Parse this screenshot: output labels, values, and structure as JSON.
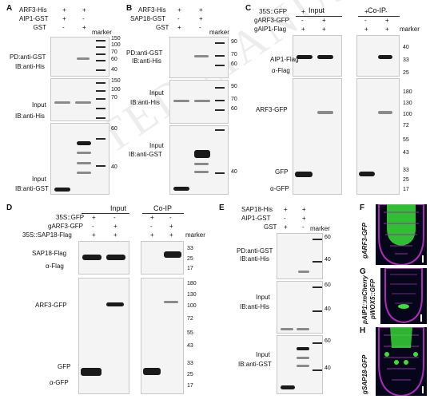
{
  "watermark": "ACCEPTED MANUSCRIPT",
  "watermark_visible": "TED MANUSCRIPT",
  "panels": {
    "A": {
      "letter": "A",
      "rows": [
        "ARF3-His",
        "AIP1-GST",
        "GST"
      ],
      "signs": [
        [
          "+",
          "+"
        ],
        [
          "+",
          "-"
        ],
        [
          "-",
          "+"
        ]
      ],
      "marker": "marker",
      "labels": [
        "PD:anti-GST",
        "IB:anti-His",
        "Input",
        "IB:anti-His",
        "Input",
        "IB:anti-GST"
      ],
      "ladder": [
        "150",
        "100",
        "70",
        "60",
        "40",
        "150",
        "100",
        "70",
        "60",
        "40"
      ]
    },
    "B": {
      "letter": "B",
      "rows": [
        "ARF3-His",
        "SAP18-GST",
        "GST"
      ],
      "signs": [
        [
          "+",
          "+"
        ],
        [
          "-",
          "+"
        ],
        [
          "+",
          "-"
        ]
      ],
      "marker": "marker",
      "labels": [
        "PD:anti-GST",
        "IB:anti-His",
        "Input",
        "IB:anti-His",
        "Input",
        "IB:anti-GST"
      ],
      "ladder": [
        "90",
        "70",
        "60",
        "90",
        "70",
        "60",
        "40"
      ]
    },
    "C": {
      "letter": "C",
      "rows": [
        "35S::GFP",
        "gARF3-GFP",
        "gAIP1-Flag"
      ],
      "signs": [
        [
          "+",
          "-",
          "+",
          "-"
        ],
        [
          "-",
          "+",
          "-",
          "+"
        ],
        [
          "+",
          "+",
          "+",
          "+"
        ]
      ],
      "input": "Input",
      "coip": "Co-IP",
      "marker": "marker",
      "labels": [
        "AIP1-Flag",
        "α-Flag",
        "ARF3-GFP",
        "GFP",
        "α-GFP"
      ],
      "ladder": [
        "40",
        "33",
        "25",
        "180",
        "130",
        "100",
        "72",
        "55",
        "43",
        "33",
        "25",
        "17"
      ]
    },
    "D": {
      "letter": "D",
      "rows": [
        "35S::GFP",
        "gARF3-GFP",
        "35S::SAP18-Flag"
      ],
      "signs": [
        [
          "+",
          "-",
          "+",
          "-"
        ],
        [
          "-",
          "+",
          "-",
          "+"
        ],
        [
          "+",
          "+",
          "+",
          "+"
        ]
      ],
      "input": "Input",
      "coip": "Co-IP",
      "marker": "marker",
      "labels": [
        "SAP18-Flag",
        "α-Flag",
        "ARF3-GFP",
        "GFP",
        "α-GFP"
      ],
      "ladder": [
        "33",
        "25",
        "17",
        "180",
        "130",
        "100",
        "72",
        "55",
        "43",
        "33",
        "25",
        "17"
      ]
    },
    "E": {
      "letter": "E",
      "rows": [
        "SAP18-His",
        "AIP1-GST",
        "GST"
      ],
      "signs": [
        [
          "+",
          "+"
        ],
        [
          "-",
          "+"
        ],
        [
          "+",
          "-"
        ]
      ],
      "marker": "marker",
      "labels": [
        "PD:anti-GST",
        "IB:anti-His",
        "Input",
        "IB:anti-His",
        "Input",
        "IB:anti-GST"
      ],
      "ladder": [
        "60",
        "40",
        "60",
        "40",
        "60",
        "40"
      ]
    },
    "F": {
      "letter": "F",
      "label": "gARF3-GFP"
    },
    "G": {
      "letter": "G",
      "label1": "pAIP1::mCherry",
      "label2": "pWOX5::GFP"
    },
    "H": {
      "letter": "H",
      "label": "gSAP18-GFP"
    }
  },
  "colors": {
    "microscopy_bg": "#06061a",
    "magenta": "#b02ab8",
    "green": "#38e038"
  }
}
